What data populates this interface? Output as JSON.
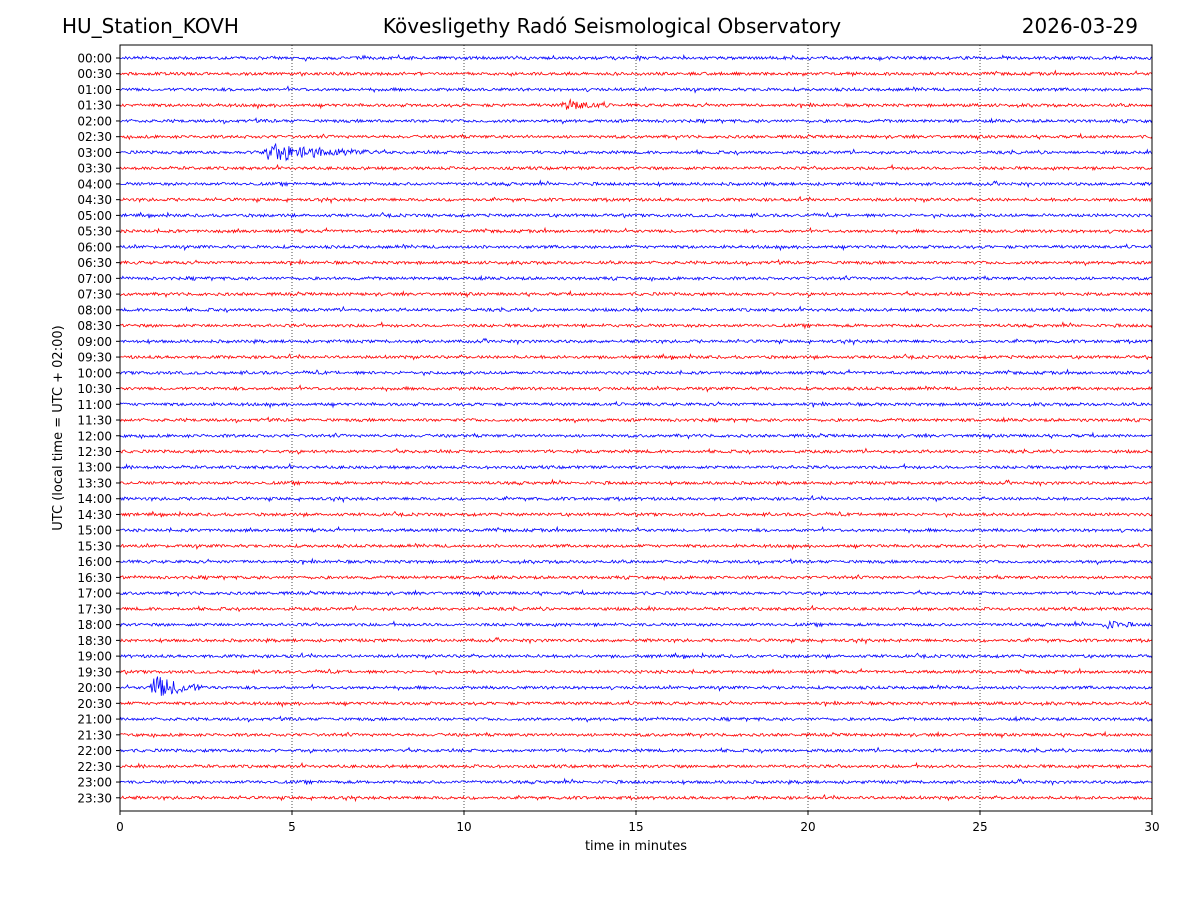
{
  "header": {
    "station": "HU_Station_KOVH",
    "observatory": "Kövesligethy Radó Seismological Observatory",
    "date": "2026-03-29"
  },
  "chart_data": {
    "type": "line",
    "title": "Kövesligethy Radó Seismological Observatory",
    "xlabel": "time in minutes",
    "ylabel": "UTC (local time = UTC + 02:00)",
    "xlim": [
      0,
      30
    ],
    "xticks": [
      0,
      5,
      10,
      15,
      20,
      25,
      30
    ],
    "x_gridlines": [
      5,
      10,
      15,
      20,
      25
    ],
    "trace_labels": [
      "00:00",
      "00:30",
      "01:00",
      "01:30",
      "02:00",
      "02:30",
      "03:00",
      "03:30",
      "04:00",
      "04:30",
      "05:00",
      "05:30",
      "06:00",
      "06:30",
      "07:00",
      "07:30",
      "08:00",
      "08:30",
      "09:00",
      "09:30",
      "10:00",
      "10:30",
      "11:00",
      "11:30",
      "12:00",
      "12:30",
      "13:00",
      "13:30",
      "14:00",
      "14:30",
      "15:00",
      "15:30",
      "16:00",
      "16:30",
      "17:00",
      "17:30",
      "18:00",
      "18:30",
      "19:00",
      "19:30",
      "20:00",
      "20:30",
      "21:00",
      "21:30",
      "22:00",
      "22:30",
      "23:00",
      "23:30"
    ],
    "trace_colors": [
      "#0000ff",
      "#ff0000"
    ],
    "events": [
      {
        "trace": "01:30",
        "start_min": 12.8,
        "end_min": 14.2,
        "amplitude": 0.35
      },
      {
        "trace": "03:00",
        "start_min": 3.9,
        "end_min": 7.5,
        "amplitude": 0.55
      },
      {
        "trace": "18:00",
        "start_min": 28.5,
        "end_min": 29.6,
        "amplitude": 0.25
      },
      {
        "trace": "20:00",
        "start_min": 0.8,
        "end_min": 2.4,
        "amplitude": 0.8
      }
    ]
  }
}
